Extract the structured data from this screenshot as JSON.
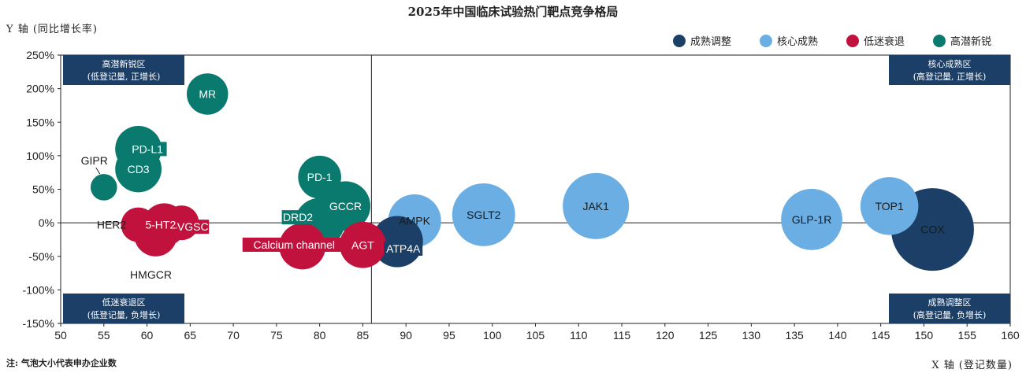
{
  "chart_data": {
    "type": "bubble",
    "title": "2025年中国临床试验热门靶点竞争格局",
    "ylabel": "Y 轴 (同比增长率)",
    "xlabel": "X 轴 (登记数量)",
    "note": "注: 气泡大小代表申办企业数",
    "xlim": [
      50,
      160
    ],
    "ylim": [
      -150,
      250
    ],
    "x_ticks": [
      "50",
      "55",
      "60",
      "65",
      "70",
      "75",
      "80",
      "85",
      "90",
      "95",
      "100",
      "105",
      "110",
      "115",
      "120",
      "125",
      "130",
      "135",
      "140",
      "145",
      "150",
      "155",
      "160"
    ],
    "y_ticks": [
      "250%",
      "200%",
      "150%",
      "100%",
      "50%",
      "0%",
      "-50%",
      "-100%",
      "-150%"
    ],
    "divider_x": 86,
    "divider_y": 0,
    "grid": false,
    "legend_position": "top-right",
    "series": [
      {
        "name": "成熟调整",
        "color": "#1b3f66"
      },
      {
        "name": "核心成熟",
        "color": "#6aaee3"
      },
      {
        "name": "低迷衰退",
        "color": "#c0123c"
      },
      {
        "name": "高潜新锐",
        "color": "#0b7a6e"
      }
    ],
    "zones": [
      {
        "line1": "高潜新锐区",
        "line2": "(低登记量, 正增长)",
        "pos": "top-left"
      },
      {
        "line1": "核心成熟区",
        "line2": "(高登记量, 正增长)",
        "pos": "top-right"
      },
      {
        "line1": "低迷衰退区",
        "line2": "(低登记量, 负增长)",
        "pos": "bottom-left"
      },
      {
        "line1": "成熟调整区",
        "line2": "(高登记量, 负增长)",
        "pos": "bottom-right"
      }
    ],
    "points": [
      {
        "label": "MR",
        "x": 67,
        "y": 192,
        "size": 2.5,
        "group": 3,
        "label_style": "inside-white"
      },
      {
        "label": "PD-L1",
        "x": 59,
        "y": 110,
        "size": 2.8,
        "group": 3,
        "label_style": "box"
      },
      {
        "label": "CD3",
        "x": 59,
        "y": 80,
        "size": 2.8,
        "group": 3,
        "label_style": "inside-white"
      },
      {
        "label": "GIPR",
        "x": 55,
        "y": 53,
        "size": 1.6,
        "group": 3,
        "label_style": "outside-dark"
      },
      {
        "label": "PD-1",
        "x": 80,
        "y": 68,
        "size": 2.6,
        "group": 3,
        "label_style": "inside-white"
      },
      {
        "label": "GCCR",
        "x": 83,
        "y": 25,
        "size": 3.0,
        "group": 3,
        "label_style": "inside-white"
      },
      {
        "label": "DRD2",
        "x": 80,
        "y": 0,
        "size": 3.0,
        "group": 3,
        "label_style": "box"
      },
      {
        "label": "HER2",
        "x": 59,
        "y": -3,
        "size": 2.1,
        "group": 2,
        "label_style": "outside-dark"
      },
      {
        "label": "5-HT2A",
        "x": 62,
        "y": -3,
        "size": 2.6,
        "group": 2,
        "label_style": "inside-white"
      },
      {
        "label": "HMGCR",
        "x": 61,
        "y": -18,
        "size": 2.6,
        "group": 2,
        "label_style": "outside-dark"
      },
      {
        "label": "VGSC",
        "x": 64,
        "y": 0,
        "size": 2.1,
        "group": 2,
        "label_style": "box"
      },
      {
        "label": "Calcium channel",
        "x": 78,
        "y": -35,
        "size": 2.8,
        "group": 2,
        "label_style": "box"
      },
      {
        "label": "AGT",
        "x": 85,
        "y": -33,
        "size": 2.8,
        "group": 2,
        "label_style": "inside-white"
      },
      {
        "label": "ATP4A",
        "x": 89,
        "y": -28,
        "size": 3.1,
        "group": 0,
        "label_style": "box"
      },
      {
        "label": "AMPK",
        "x": 91,
        "y": 3,
        "size": 3.2,
        "group": 1,
        "label_style": "inside-dark"
      },
      {
        "label": "SGLT2",
        "x": 99,
        "y": 12,
        "size": 3.8,
        "group": 1,
        "label_style": "inside-dark"
      },
      {
        "label": "JAK1",
        "x": 112,
        "y": 25,
        "size": 4.0,
        "group": 1,
        "label_style": "inside-dark"
      },
      {
        "label": "GLP-1R",
        "x": 137,
        "y": 5,
        "size": 3.7,
        "group": 1,
        "label_style": "inside-dark"
      },
      {
        "label": "TOP1",
        "x": 146,
        "y": 25,
        "size": 3.5,
        "group": 1,
        "label_style": "inside-dark"
      },
      {
        "label": "COX",
        "x": 151,
        "y": -10,
        "size": 5.0,
        "group": 0,
        "label_style": "inside-dark"
      }
    ]
  }
}
